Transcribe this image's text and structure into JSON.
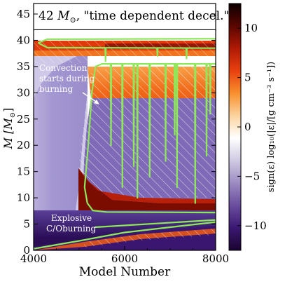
{
  "chart_data": {
    "type": "heatmap",
    "title": "42 M_⊙, \"time dependent decel.\"",
    "title_parts": {
      "lead": "42 ",
      "sym": "M",
      "sub": "⊙",
      "tail": ", \"time dependent decel.\""
    },
    "xlabel": "Model Number",
    "ylabel_parts": {
      "lead": "M [",
      "sym": "M",
      "sub": "⊙",
      "tail": "]"
    },
    "xlim": [
      4000,
      8000
    ],
    "ylim": [
      0,
      47
    ],
    "x_ticks": [
      4000,
      6000,
      8000
    ],
    "y_ticks": [
      0,
      5,
      10,
      15,
      20,
      25,
      30,
      35,
      40,
      45
    ],
    "x_tick_labels": [
      "4000",
      "6000",
      "8000"
    ],
    "y_tick_labels": [
      "0",
      "5",
      "10",
      "15",
      "20",
      "25",
      "30",
      "35",
      "40",
      "45"
    ],
    "colorbar": {
      "label": "sign(ε) log₁₀(|ε|/[g cm⁻³ s⁻¹])",
      "range": [
        -12.5,
        12.5
      ],
      "ticks": [
        10,
        5,
        0,
        -5,
        -10
      ],
      "tick_labels": [
        "10",
        "5",
        "0",
        "−5",
        "−10"
      ],
      "colors": [
        "#1a0430",
        "#3b1872",
        "#6a4d9e",
        "#9c8bc2",
        "#d0cae2",
        "#ffffff",
        "#fbd4a0",
        "#f8902e",
        "#e8410f",
        "#b01905",
        "#5a0600",
        "#0c0000"
      ]
    },
    "total_mass_line": 42,
    "annotations": {
      "convection": [
        "Convection",
        "starts during",
        "burning"
      ],
      "explosive": [
        "Explosive",
        "C/Oburning"
      ]
    },
    "colors": {
      "convective_outline": "#8ee85a",
      "hatch": "#ffffff",
      "core_deep": "#2a0f58",
      "core_mid": "#6b54a8",
      "envelope_purple": "#8f82c4",
      "envelope_light": "#c2b8de",
      "burn_red": "#e8330e",
      "burn_orange": "#f7882a",
      "burn_dark": "#7a0a00"
    }
  }
}
